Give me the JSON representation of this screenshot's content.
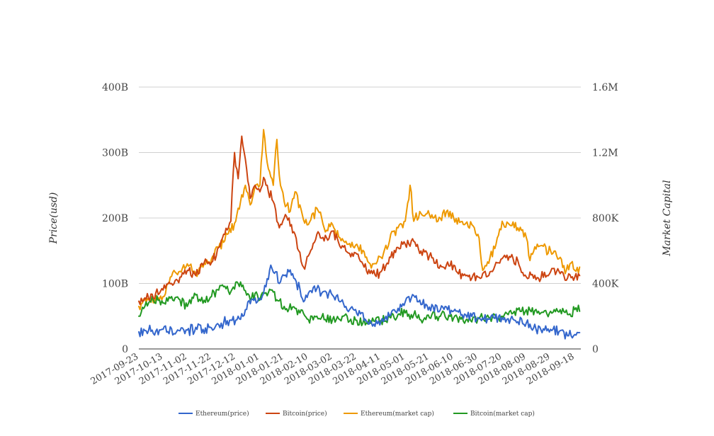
{
  "chart_data": {
    "type": "line",
    "title": "",
    "y_left_label": "Price(usd)",
    "y_right_label": "Market Capital",
    "y_left_ticks": [
      "0",
      "100B",
      "200B",
      "300B",
      "400B"
    ],
    "y_right_ticks": [
      "0",
      "400K",
      "800K",
      "1.2M",
      "1.6M"
    ],
    "y_left_range": [
      0,
      400
    ],
    "y_right_range": [
      0,
      1600
    ],
    "x_ticks": [
      "2017-09-23",
      "2017-10-13",
      "2017-11-02",
      "2017-11-22",
      "2017-12-12",
      "2018-01-01",
      "2018-01-21",
      "2018-02-10",
      "2018-03-02",
      "2018-03-22",
      "2018-04-11",
      "2018-05-01",
      "2018-05-21",
      "2018-06-10",
      "2018-06-30",
      "2018-07-20",
      "2018-08-09",
      "2018-08-29",
      "2018-09-18"
    ],
    "x_range": [
      "2017-09-23",
      "2018-09-23"
    ],
    "grid": true,
    "legend_position": "bottom",
    "series": [
      {
        "name": "Ethereum(price)",
        "axis": "left",
        "color": "#3366cc",
        "points": [
          [
            "2017-09-23",
            26
          ],
          [
            "2017-10-01",
            28
          ],
          [
            "2017-10-13",
            30
          ],
          [
            "2017-10-25",
            29
          ],
          [
            "2017-11-02",
            29
          ],
          [
            "2017-11-15",
            30
          ],
          [
            "2017-11-22",
            32
          ],
          [
            "2017-11-28",
            37
          ],
          [
            "2017-12-05",
            43
          ],
          [
            "2017-12-12",
            44
          ],
          [
            "2017-12-18",
            50
          ],
          [
            "2017-12-22",
            72
          ],
          [
            "2017-12-28",
            78
          ],
          [
            "2018-01-01",
            76
          ],
          [
            "2018-01-06",
            95
          ],
          [
            "2018-01-10",
            128
          ],
          [
            "2018-01-14",
            118
          ],
          [
            "2018-01-17",
            100
          ],
          [
            "2018-01-21",
            112
          ],
          [
            "2018-01-25",
            118
          ],
          [
            "2018-01-29",
            108
          ],
          [
            "2018-02-03",
            92
          ],
          [
            "2018-02-06",
            72
          ],
          [
            "2018-02-10",
            85
          ],
          [
            "2018-02-17",
            92
          ],
          [
            "2018-02-23",
            88
          ],
          [
            "2018-03-02",
            82
          ],
          [
            "2018-03-10",
            75
          ],
          [
            "2018-03-16",
            60
          ],
          [
            "2018-03-22",
            54
          ],
          [
            "2018-03-30",
            42
          ],
          [
            "2018-04-05",
            38
          ],
          [
            "2018-04-11",
            42
          ],
          [
            "2018-04-19",
            52
          ],
          [
            "2018-04-25",
            62
          ],
          [
            "2018-05-01",
            72
          ],
          [
            "2018-05-06",
            78
          ],
          [
            "2018-05-12",
            72
          ],
          [
            "2018-05-21",
            64
          ],
          [
            "2018-05-30",
            60
          ],
          [
            "2018-06-10",
            58
          ],
          [
            "2018-06-20",
            52
          ],
          [
            "2018-06-30",
            48
          ],
          [
            "2018-07-10",
            46
          ],
          [
            "2018-07-20",
            48
          ],
          [
            "2018-07-30",
            44
          ],
          [
            "2018-08-09",
            40
          ],
          [
            "2018-08-15",
            32
          ],
          [
            "2018-08-29",
            30
          ],
          [
            "2018-09-06",
            28
          ],
          [
            "2018-09-12",
            20
          ],
          [
            "2018-09-18",
            22
          ],
          [
            "2018-09-22",
            25
          ]
        ]
      },
      {
        "name": "Bitcoin(price)",
        "axis": "left",
        "color": "#cc4411",
        "points": [
          [
            "2017-09-23",
            73
          ],
          [
            "2017-10-01",
            78
          ],
          [
            "2017-10-13",
            90
          ],
          [
            "2017-10-20",
            100
          ],
          [
            "2017-10-28",
            110
          ],
          [
            "2017-11-02",
            120
          ],
          [
            "2017-11-09",
            112
          ],
          [
            "2017-11-15",
            128
          ],
          [
            "2017-11-22",
            132
          ],
          [
            "2017-11-28",
            155
          ],
          [
            "2017-12-03",
            175
          ],
          [
            "2017-12-08",
            195
          ],
          [
            "2017-12-11",
            300
          ],
          [
            "2017-12-14",
            260
          ],
          [
            "2017-12-17",
            325
          ],
          [
            "2017-12-20",
            290
          ],
          [
            "2017-12-24",
            230
          ],
          [
            "2017-12-28",
            250
          ],
          [
            "2018-01-01",
            240
          ],
          [
            "2018-01-04",
            262
          ],
          [
            "2018-01-08",
            240
          ],
          [
            "2018-01-12",
            225
          ],
          [
            "2018-01-17",
            185
          ],
          [
            "2018-01-21",
            200
          ],
          [
            "2018-01-27",
            190
          ],
          [
            "2018-02-02",
            150
          ],
          [
            "2018-02-06",
            125
          ],
          [
            "2018-02-10",
            142
          ],
          [
            "2018-02-17",
            175
          ],
          [
            "2018-02-23",
            165
          ],
          [
            "2018-03-02",
            180
          ],
          [
            "2018-03-07",
            162
          ],
          [
            "2018-03-14",
            148
          ],
          [
            "2018-03-22",
            145
          ],
          [
            "2018-03-28",
            125
          ],
          [
            "2018-04-04",
            115
          ],
          [
            "2018-04-11",
            118
          ],
          [
            "2018-04-19",
            140
          ],
          [
            "2018-04-25",
            155
          ],
          [
            "2018-05-01",
            160
          ],
          [
            "2018-05-06",
            165
          ],
          [
            "2018-05-12",
            152
          ],
          [
            "2018-05-21",
            142
          ],
          [
            "2018-05-30",
            128
          ],
          [
            "2018-06-10",
            128
          ],
          [
            "2018-06-18",
            112
          ],
          [
            "2018-06-25",
            108
          ],
          [
            "2018-06-30",
            110
          ],
          [
            "2018-07-10",
            118
          ],
          [
            "2018-07-20",
            138
          ],
          [
            "2018-07-27",
            140
          ],
          [
            "2018-08-03",
            128
          ],
          [
            "2018-08-09",
            110
          ],
          [
            "2018-08-15",
            108
          ],
          [
            "2018-08-29",
            118
          ],
          [
            "2018-09-06",
            115
          ],
          [
            "2018-09-12",
            108
          ],
          [
            "2018-09-18",
            110
          ],
          [
            "2018-09-22",
            112
          ]
        ]
      },
      {
        "name": "Ethereum(market cap)",
        "axis": "right",
        "color": "#ee9900",
        "points": [
          [
            "2017-09-23",
            260
          ],
          [
            "2017-10-01",
            300
          ],
          [
            "2017-10-13",
            320
          ],
          [
            "2017-10-17",
            400
          ],
          [
            "2017-10-22",
            480
          ],
          [
            "2017-10-28",
            470
          ],
          [
            "2017-11-02",
            520
          ],
          [
            "2017-11-09",
            460
          ],
          [
            "2017-11-15",
            500
          ],
          [
            "2017-11-22",
            550
          ],
          [
            "2017-11-28",
            620
          ],
          [
            "2017-12-05",
            700
          ],
          [
            "2017-12-12",
            780
          ],
          [
            "2017-12-16",
            900
          ],
          [
            "2017-12-20",
            1000
          ],
          [
            "2017-12-24",
            880
          ],
          [
            "2017-12-28",
            1000
          ],
          [
            "2018-01-01",
            1000
          ],
          [
            "2018-01-04",
            1340
          ],
          [
            "2018-01-08",
            1100
          ],
          [
            "2018-01-12",
            1000
          ],
          [
            "2018-01-15",
            1280
          ],
          [
            "2018-01-17",
            1060
          ],
          [
            "2018-01-21",
            900
          ],
          [
            "2018-01-26",
            840
          ],
          [
            "2018-01-30",
            960
          ],
          [
            "2018-02-05",
            820
          ],
          [
            "2018-02-10",
            760
          ],
          [
            "2018-02-17",
            860
          ],
          [
            "2018-02-23",
            740
          ],
          [
            "2018-03-02",
            760
          ],
          [
            "2018-03-08",
            680
          ],
          [
            "2018-03-14",
            640
          ],
          [
            "2018-03-22",
            640
          ],
          [
            "2018-03-29",
            560
          ],
          [
            "2018-04-04",
            520
          ],
          [
            "2018-04-11",
            560
          ],
          [
            "2018-04-18",
            660
          ],
          [
            "2018-04-25",
            740
          ],
          [
            "2018-05-01",
            780
          ],
          [
            "2018-05-05",
            1000
          ],
          [
            "2018-05-08",
            780
          ],
          [
            "2018-05-13",
            840
          ],
          [
            "2018-05-21",
            820
          ],
          [
            "2018-05-28",
            780
          ],
          [
            "2018-06-04",
            840
          ],
          [
            "2018-06-10",
            800
          ],
          [
            "2018-06-18",
            760
          ],
          [
            "2018-06-25",
            760
          ],
          [
            "2018-06-30",
            700
          ],
          [
            "2018-07-04",
            480
          ],
          [
            "2018-07-10",
            560
          ],
          [
            "2018-07-15",
            640
          ],
          [
            "2018-07-20",
            780
          ],
          [
            "2018-07-26",
            760
          ],
          [
            "2018-08-02",
            740
          ],
          [
            "2018-08-09",
            680
          ],
          [
            "2018-08-12",
            540
          ],
          [
            "2018-08-18",
            640
          ],
          [
            "2018-08-29",
            600
          ],
          [
            "2018-09-06",
            560
          ],
          [
            "2018-09-10",
            460
          ],
          [
            "2018-09-14",
            520
          ],
          [
            "2018-09-18",
            480
          ],
          [
            "2018-09-22",
            500
          ]
        ]
      },
      {
        "name": "Bitcoin(market cap)",
        "axis": "right",
        "color": "#229922",
        "points": [
          [
            "2017-09-23",
            200
          ],
          [
            "2017-09-28",
            260
          ],
          [
            "2017-10-05",
            300
          ],
          [
            "2017-10-13",
            280
          ],
          [
            "2017-10-20",
            320
          ],
          [
            "2017-10-27",
            300
          ],
          [
            "2017-11-02",
            260
          ],
          [
            "2017-11-08",
            340
          ],
          [
            "2017-11-15",
            280
          ],
          [
            "2017-11-22",
            320
          ],
          [
            "2017-11-28",
            360
          ],
          [
            "2017-12-02",
            380
          ],
          [
            "2017-12-08",
            350
          ],
          [
            "2017-12-14",
            400
          ],
          [
            "2017-12-19",
            360
          ],
          [
            "2017-12-24",
            300
          ],
          [
            "2017-12-28",
            340
          ],
          [
            "2018-01-01",
            300
          ],
          [
            "2018-01-05",
            340
          ],
          [
            "2018-01-10",
            360
          ],
          [
            "2018-01-15",
            300
          ],
          [
            "2018-01-21",
            260
          ],
          [
            "2018-01-27",
            240
          ],
          [
            "2018-02-03",
            220
          ],
          [
            "2018-02-10",
            180
          ],
          [
            "2018-02-17",
            200
          ],
          [
            "2018-02-24",
            180
          ],
          [
            "2018-03-02",
            180
          ],
          [
            "2018-03-10",
            200
          ],
          [
            "2018-03-16",
            170
          ],
          [
            "2018-03-22",
            175
          ],
          [
            "2018-03-30",
            160
          ],
          [
            "2018-04-05",
            170
          ],
          [
            "2018-04-11",
            175
          ],
          [
            "2018-04-19",
            190
          ],
          [
            "2018-04-25",
            210
          ],
          [
            "2018-05-01",
            220
          ],
          [
            "2018-05-10",
            200
          ],
          [
            "2018-05-21",
            190
          ],
          [
            "2018-05-30",
            200
          ],
          [
            "2018-06-10",
            190
          ],
          [
            "2018-06-20",
            175
          ],
          [
            "2018-06-30",
            185
          ],
          [
            "2018-07-10",
            190
          ],
          [
            "2018-07-20",
            200
          ],
          [
            "2018-07-30",
            230
          ],
          [
            "2018-08-09",
            240
          ],
          [
            "2018-08-18",
            220
          ],
          [
            "2018-08-29",
            230
          ],
          [
            "2018-09-06",
            240
          ],
          [
            "2018-09-12",
            210
          ],
          [
            "2018-09-18",
            240
          ],
          [
            "2018-09-22",
            230
          ]
        ]
      }
    ]
  }
}
